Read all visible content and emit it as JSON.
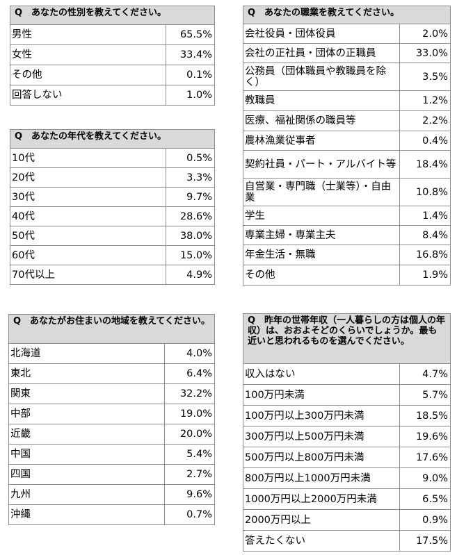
{
  "tables": [
    {
      "id": "gender",
      "question": "Q　あなたの性別を教えてください。",
      "rows": [
        {
          "label": "男性",
          "value": "65.5%"
        },
        {
          "label": "女性",
          "value": "33.4%"
        },
        {
          "label": "その他",
          "value": "0.1%"
        },
        {
          "label": "回答しない",
          "value": "1.0%"
        }
      ]
    },
    {
      "id": "age",
      "question": "Q　あなたの年代を教えてください。",
      "rows": [
        {
          "label": "10代",
          "value": "0.5%"
        },
        {
          "label": "20代",
          "value": "3.3%"
        },
        {
          "label": "30代",
          "value": "9.7%"
        },
        {
          "label": "40代",
          "value": "28.6%"
        },
        {
          "label": "50代",
          "value": "38.0%"
        },
        {
          "label": "60代",
          "value": "15.0%"
        },
        {
          "label": "70代以上",
          "value": "4.9%"
        }
      ]
    },
    {
      "id": "region",
      "question": "Q　あなたがお住まいの地域を教えてください。",
      "rows": [
        {
          "label": "北海道",
          "value": "4.0%"
        },
        {
          "label": "東北",
          "value": "6.4%"
        },
        {
          "label": "関東",
          "value": "32.2%"
        },
        {
          "label": "中部",
          "value": "19.0%"
        },
        {
          "label": "近畿",
          "value": "20.0%"
        },
        {
          "label": "中国",
          "value": "5.4%"
        },
        {
          "label": "四国",
          "value": "2.7%"
        },
        {
          "label": "九州",
          "value": "9.6%"
        },
        {
          "label": "沖縄",
          "value": "0.7%"
        }
      ]
    },
    {
      "id": "occupation",
      "question": "Q　あなたの職業を教えてください。",
      "rows": [
        {
          "label": "会社役員・団体役員",
          "value": "2.0%"
        },
        {
          "label": "会社の正社員・団体の正職員",
          "value": "33.0%"
        },
        {
          "label": "公務員（団体職員や教職員を除く）",
          "value": "3.5%"
        },
        {
          "label": "教職員",
          "value": "1.2%"
        },
        {
          "label": "医療、福祉関係の職員等",
          "value": "2.2%"
        },
        {
          "label": "農林漁業従事者",
          "value": "0.4%"
        },
        {
          "label": "契約社員・パート・アルバイト等",
          "value": "18.4%"
        },
        {
          "label": "自営業・専門職（士業等）・自由業",
          "value": "10.8%"
        },
        {
          "label": "学生",
          "value": "1.4%"
        },
        {
          "label": "専業主婦・専業主夫",
          "value": "8.4%"
        },
        {
          "label": "年金生活・無職",
          "value": "16.8%"
        },
        {
          "label": "その他",
          "value": "1.9%"
        }
      ]
    },
    {
      "id": "income",
      "question": "Q　昨年の世帯年収（一人暮らしの方は個人の年収）は、おおよそどのくらいでしょうか。最も近いと思われるものを選んでください。",
      "rows": [
        {
          "label": "収入はない",
          "value": "4.7%"
        },
        {
          "label": "100万円未満",
          "value": "5.7%"
        },
        {
          "label": "100万円以上300万円未満",
          "value": "18.5%"
        },
        {
          "label": "300万円以上500万円未満",
          "value": "19.6%"
        },
        {
          "label": "500万円以上800万円未満",
          "value": "17.6%"
        },
        {
          "label": "800万円以上1000万円未満",
          "value": "9.0%"
        },
        {
          "label": "1000万円以上2000万円未満",
          "value": "6.5%"
        },
        {
          "label": "2000万円以上",
          "value": "0.9%"
        },
        {
          "label": "答えたくない",
          "value": "17.5%"
        }
      ]
    }
  ]
}
